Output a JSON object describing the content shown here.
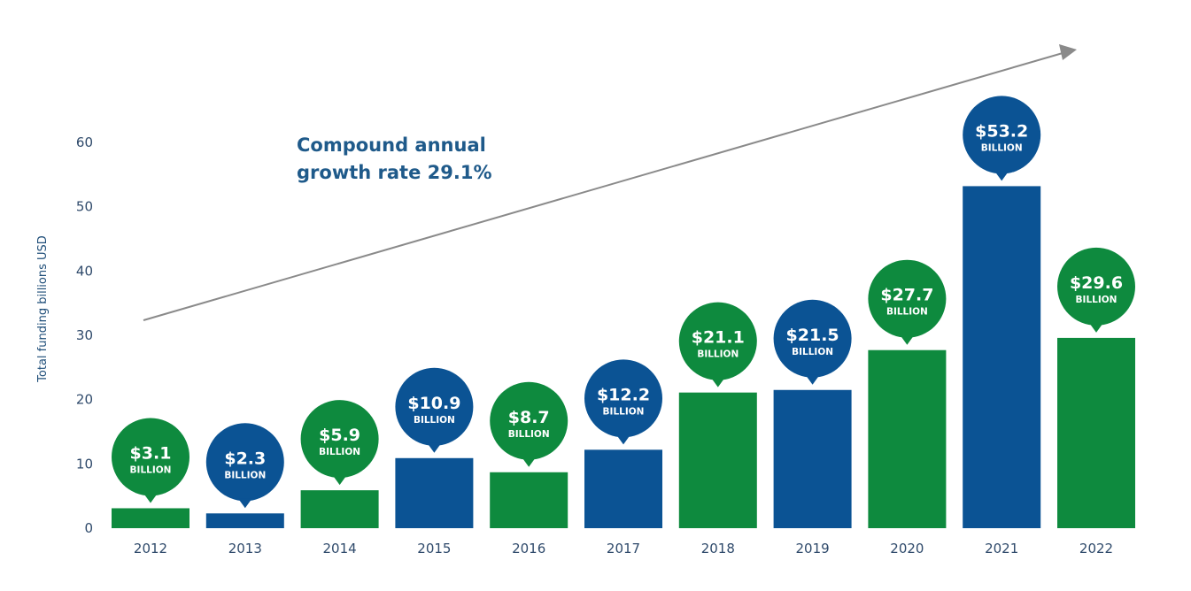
{
  "chart_data": {
    "type": "bar",
    "title": "",
    "xlabel": "",
    "ylabel": "Total funding billions USD",
    "ylim": [
      0,
      60
    ],
    "yticks": [
      0,
      10,
      20,
      30,
      40,
      50,
      60
    ],
    "grid": false,
    "legend": "none",
    "categories": [
      "2012",
      "2013",
      "2014",
      "2015",
      "2016",
      "2017",
      "2018",
      "2019",
      "2020",
      "2021",
      "2022"
    ],
    "values": [
      3.1,
      2.3,
      5.9,
      10.9,
      8.7,
      12.2,
      21.1,
      21.5,
      27.7,
      53.2,
      29.6
    ],
    "data_labels": [
      "$3.1",
      "$2.3",
      "$5.9",
      "$10.9",
      "$8.7",
      "$12.2",
      "$21.1",
      "$21.5",
      "$27.7",
      "$53.2",
      "$29.6"
    ],
    "data_label_unit": "BILLION",
    "bar_colors": [
      "green",
      "blue",
      "green",
      "blue",
      "green",
      "blue",
      "green",
      "blue",
      "green",
      "blue",
      "green"
    ],
    "annotation": {
      "lines": [
        "Compound annual",
        "growth rate 29.1%"
      ],
      "trend_arrow": "upward arrow from lower-left to upper-right"
    }
  },
  "colors": {
    "green": "#0e8a3e",
    "blue": "#0b5394",
    "axis_text": "#2f4a6b",
    "annotation_text": "#1f5a8a",
    "arrow": "#8a8a8a"
  }
}
